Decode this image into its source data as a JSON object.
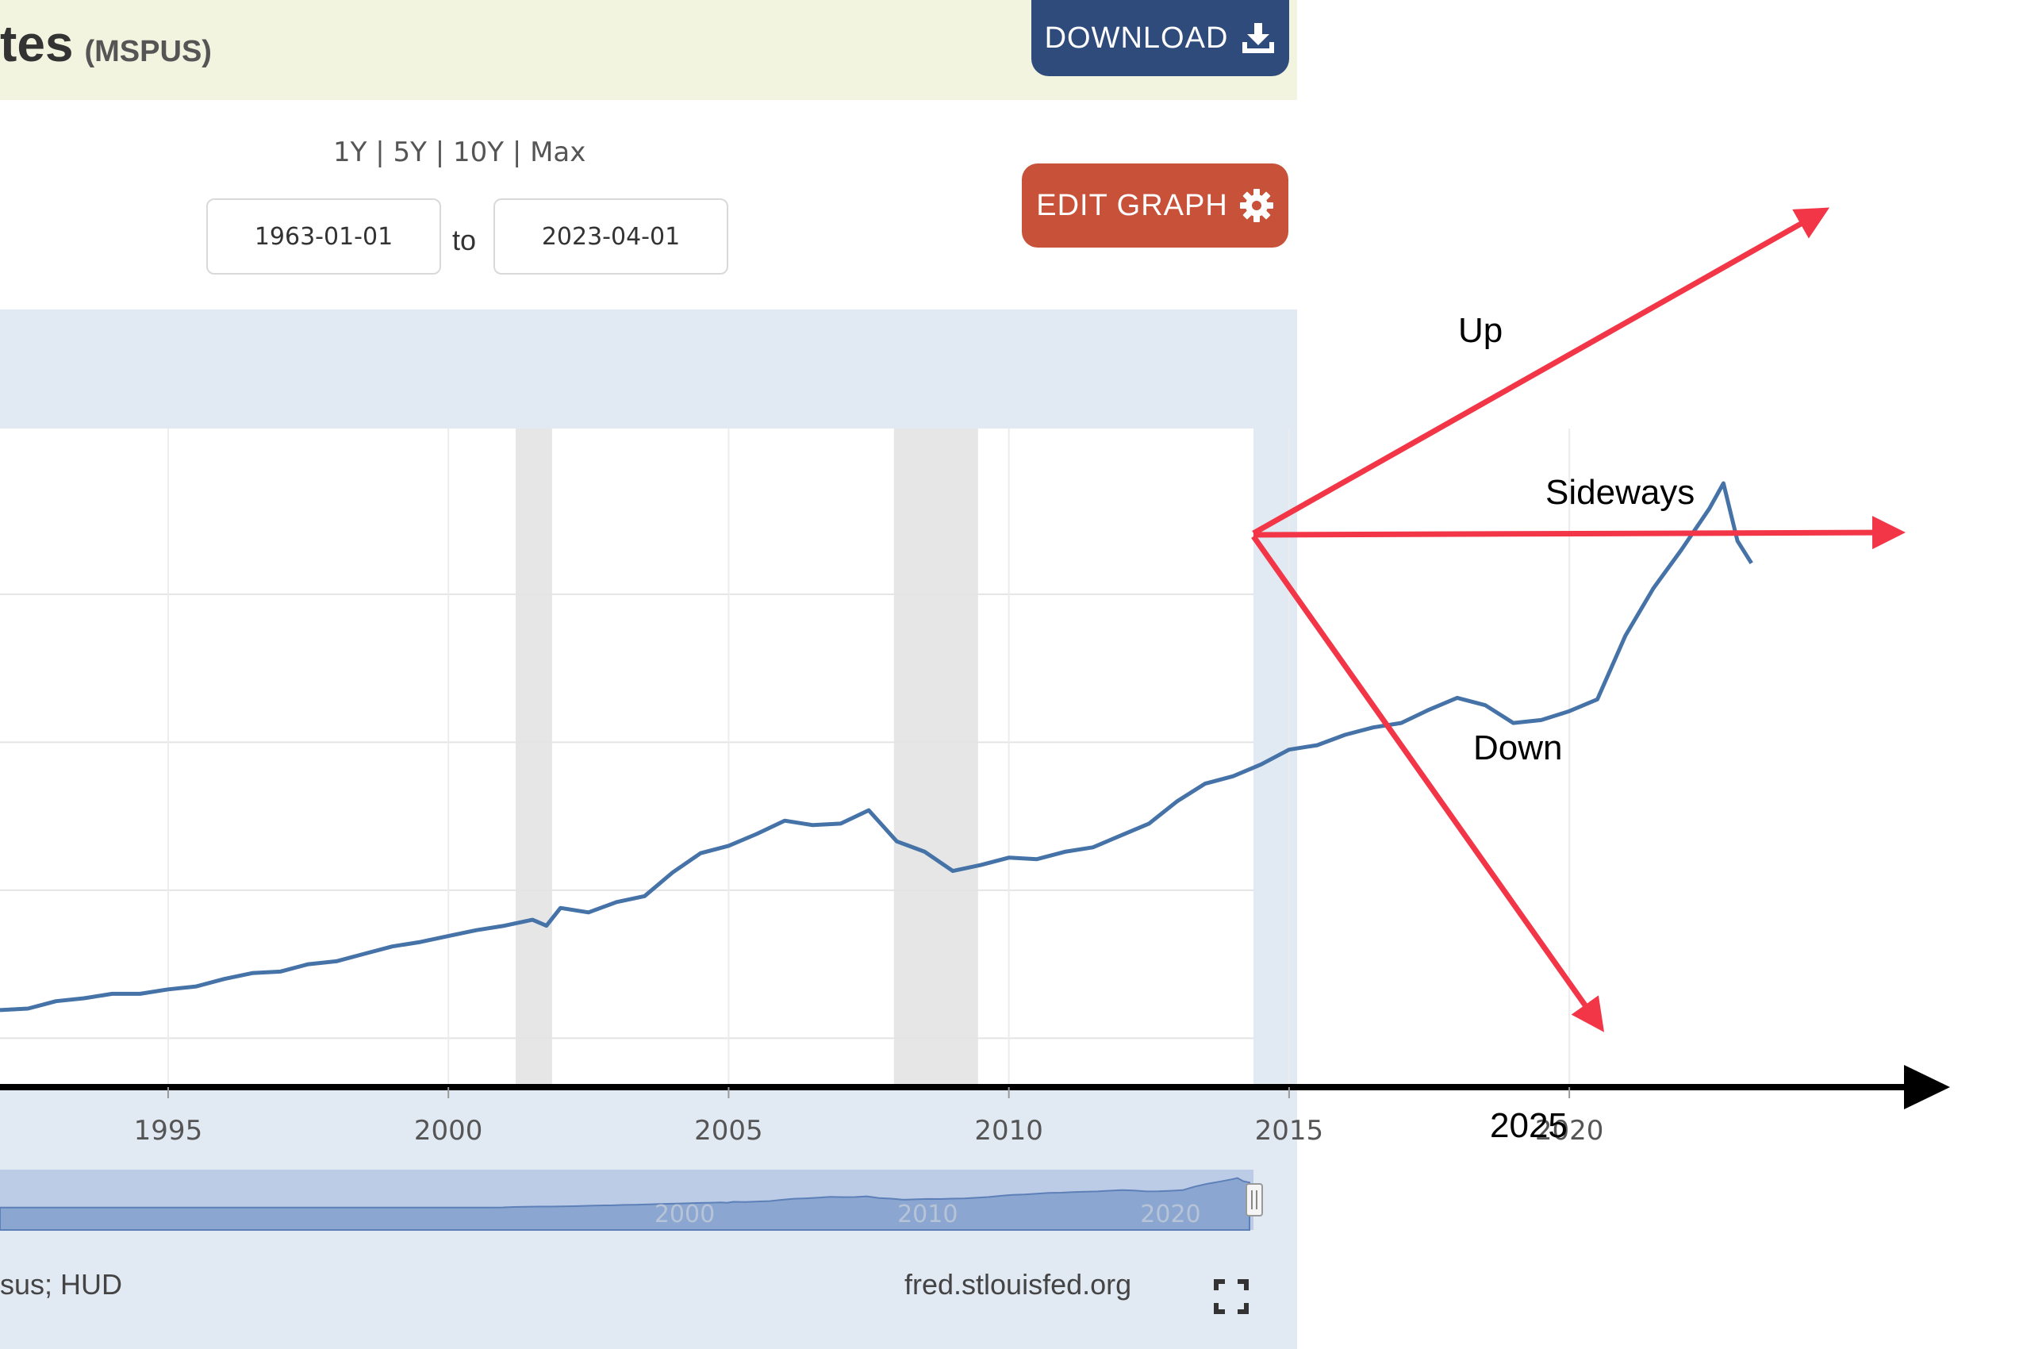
{
  "header": {
    "title": "tes",
    "series_code": "(MSPUS)",
    "download_label": "DOWNLOAD",
    "edit_label": "EDIT GRAPH"
  },
  "controls": {
    "ranges": [
      "1Y",
      "5Y",
      "10Y",
      "Max"
    ],
    "start_date": "1963-01-01",
    "end_date": "2023-04-01",
    "to_label": "to"
  },
  "footer": {
    "source": "sus; HUD",
    "site": "fred.stlouisfed.org"
  },
  "annotations": {
    "up": "Up",
    "sideways": "Sideways",
    "down": "Down",
    "year": "2025"
  },
  "colors": {
    "line": "#4572a7",
    "arrows": "#f23647",
    "download_bg": "#2f4b7c",
    "edit_bg": "#c8513a",
    "header_bg": "#f2f4e0",
    "panel_bg": "#e1e9f3",
    "recession": "#e6e6e6"
  },
  "chart_data": {
    "type": "line",
    "x_ticks": [
      "1995",
      "2000",
      "2005",
      "2010",
      "2015",
      "2020"
    ],
    "navigator_ticks": [
      "2000",
      "2010",
      "2020"
    ],
    "xlim": [
      1992.0,
      2027.5
    ],
    "ylim": [
      68000,
      512000
    ],
    "recessions": [
      [
        2001.2,
        2001.85
      ],
      [
        2007.95,
        2009.45
      ]
    ],
    "series": [
      {
        "x": [
          1992.0,
          1992.5,
          1993.0,
          1993.5,
          1994.0,
          1994.5,
          1995.0,
          1995.5,
          1996.0,
          1996.5,
          1997.0,
          1997.5,
          1998.0,
          1998.5,
          1999.0,
          1999.5,
          2000.0,
          2000.5,
          2001.0,
          2001.5,
          2001.75,
          2002.0,
          2002.5,
          2003.0,
          2003.5,
          2004.0,
          2004.5,
          2005.0,
          2005.5,
          2006.0,
          2006.5,
          2007.0,
          2007.5,
          2008.0,
          2008.5,
          2009.0,
          2009.5,
          2010.0,
          2010.5,
          2011.0,
          2011.5,
          2012.0,
          2012.5,
          2013.0,
          2013.5,
          2014.0,
          2014.5,
          2015.0,
          2015.5,
          2016.0,
          2016.5,
          2017.0,
          2017.5,
          2018.0,
          2018.5,
          2019.0,
          2019.5,
          2020.0,
          2020.5,
          2021.0,
          2021.5,
          2022.0,
          2022.5,
          2022.75,
          2023.0,
          2023.25
        ],
        "y": [
          119000,
          120000,
          125000,
          127000,
          130000,
          130000,
          133000,
          135000,
          140000,
          144000,
          145000,
          150000,
          152000,
          157000,
          162000,
          165000,
          169000,
          173000,
          176000,
          180000,
          176000,
          188000,
          185000,
          192000,
          196000,
          212000,
          225000,
          230000,
          238000,
          247000,
          244000,
          245000,
          254000,
          233000,
          226000,
          213000,
          217000,
          222000,
          221000,
          226000,
          229000,
          237000,
          245000,
          260000,
          272000,
          277000,
          285000,
          295000,
          298000,
          305000,
          310000,
          313000,
          322000,
          330000,
          325000,
          313000,
          315000,
          321000,
          329000,
          372000,
          404000,
          430000,
          458000,
          475000,
          436000,
          421000
        ],
        "y_estimated": true
      }
    ]
  }
}
